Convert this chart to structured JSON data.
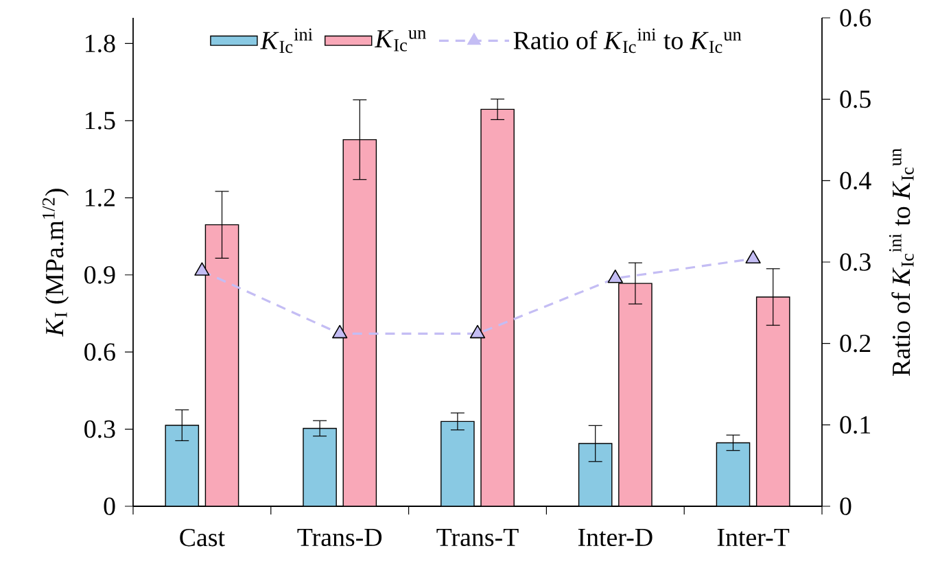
{
  "chart_data": {
    "type": "bar",
    "categories": [
      "Cast",
      "Trans-D",
      "Trans-T",
      "Inter-D",
      "Inter-T"
    ],
    "ylabel": "*K*$_{I}$ (MPa.m$^{1/2}$)",
    "y2label": "Ratio of *K*$_{Ic}$$^{ini}$ to *K*$_{Ic}$$^{un}$",
    "ylim": [
      0,
      1.9
    ],
    "yticks": [
      0,
      0.3,
      0.6,
      0.9,
      1.2,
      1.5,
      1.8
    ],
    "y2lim": [
      0,
      0.6
    ],
    "y2ticks": [
      0,
      0.1,
      0.2,
      0.3,
      0.4,
      0.5,
      0.6
    ],
    "legend": "top",
    "series": [
      {
        "name": "*K*$_{Ic}$$^{ini}$",
        "color": "#89c9e3",
        "values": [
          0.315,
          0.303,
          0.33,
          0.244,
          0.247
        ],
        "errors": [
          0.06,
          0.03,
          0.033,
          0.07,
          0.03
        ]
      },
      {
        "name": "*K*$_{Ic}$$^{un}$",
        "color": "#f9a8b8",
        "values": [
          1.095,
          1.426,
          1.544,
          0.867,
          0.814
        ],
        "errors": [
          0.13,
          0.155,
          0.04,
          0.08,
          0.11
        ]
      },
      {
        "name": "Ratio of *K*$_{Ic}$$^{ini}$ to *K*$_{Ic}$$^{un}$",
        "type": "line",
        "axis": "y2",
        "color": "#c4bdf4",
        "marker": "triangle",
        "line_style": "dashed",
        "values": [
          0.289,
          0.212,
          0.212,
          0.28,
          0.304
        ]
      }
    ]
  }
}
